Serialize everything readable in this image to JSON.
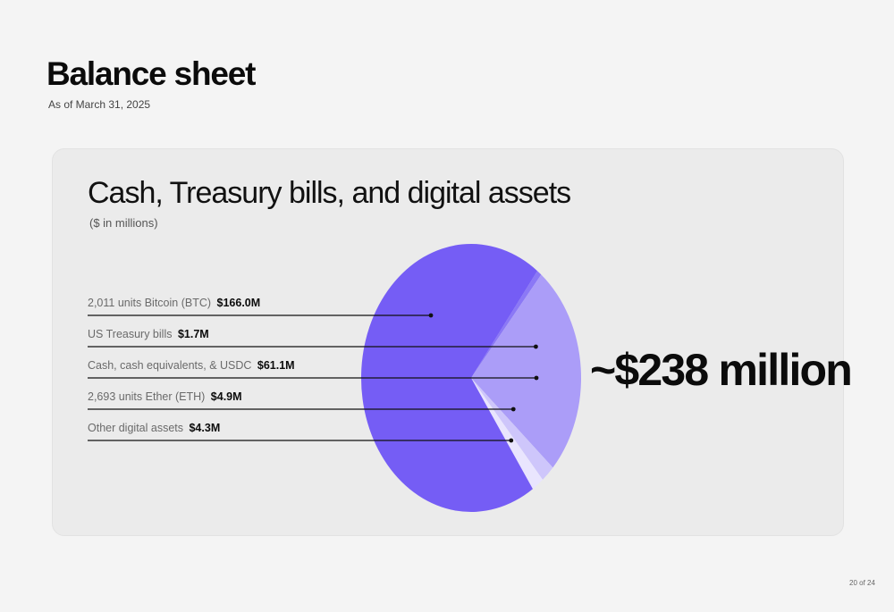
{
  "page": {
    "title": "Balance sheet",
    "subtitle": "As of March 31, 2025",
    "page_number": "20 of 24"
  },
  "chart_data": {
    "type": "pie",
    "title": "Cash, Treasury bills, and digital assets",
    "subtitle": "($ in millions)",
    "total_label": "~$238 million",
    "slices": [
      {
        "label": "2,011 units Bitcoin (BTC)",
        "value_label": "$166.0M",
        "value": 166.0,
        "color": "#755df5"
      },
      {
        "label": "US Treasury bills",
        "value_label": "$1.7M",
        "value": 1.7,
        "color": "#8b78f6"
      },
      {
        "label": "Cash, cash equivalents, & USDC",
        "value_label": "$61.1M",
        "value": 61.1,
        "color": "#ab9df8"
      },
      {
        "label": "2,693 units Ether (ETH)",
        "value_label": "$4.9M",
        "value": 4.9,
        "color": "#cec6fb"
      },
      {
        "label": "Other digital assets",
        "value_label": "$4.3M",
        "value": 4.3,
        "color": "#e9e5fe"
      }
    ]
  }
}
